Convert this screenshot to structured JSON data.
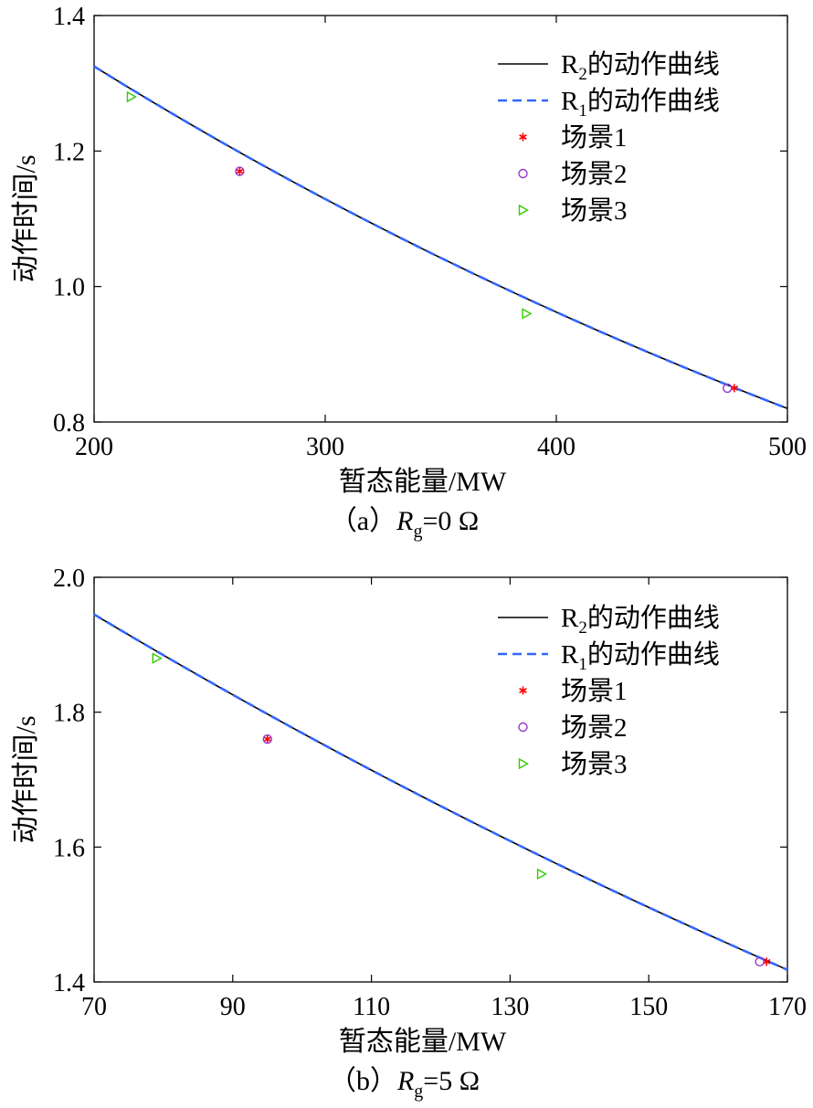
{
  "chart_data": [
    {
      "type": "line",
      "caption": {
        "prefix": "（a）",
        "var": "R",
        "sub": "g",
        "rest": "=0 Ω"
      },
      "xlabel": "暂态能量/MW",
      "ylabel": "动作时间/s",
      "xlim": [
        200,
        500
      ],
      "ylim": [
        0.8,
        1.4
      ],
      "xticks": [
        200,
        300,
        400,
        500
      ],
      "yticks": [
        0.8,
        1.0,
        1.2,
        1.4
      ],
      "ytick_decimals": 1,
      "legend_position": "top-right",
      "curve": {
        "x_start": 200,
        "x_end": 500,
        "y_start": 1.325,
        "y_end": 0.82
      },
      "series": [
        {
          "name": "R",
          "name_sub": "2",
          "name_rest": "的动作曲线",
          "kind": "curve",
          "style": "solid",
          "color": "#000000"
        },
        {
          "name": "R",
          "name_sub": "1",
          "name_rest": "的动作曲线",
          "kind": "curve",
          "style": "dashed",
          "color": "#3366ff"
        },
        {
          "name": "场景1",
          "kind": "points",
          "marker": "asterisk",
          "color": "#ff0000",
          "points": [
            [
              263,
              1.17
            ],
            [
              477,
              0.85
            ]
          ]
        },
        {
          "name": "场景2",
          "kind": "points",
          "marker": "circle",
          "color": "#9933cc",
          "points": [
            [
              263,
              1.17
            ],
            [
              474,
              0.85
            ]
          ]
        },
        {
          "name": "场景3",
          "kind": "points",
          "marker": "triangle-right",
          "color": "#33cc00",
          "points": [
            [
              216,
              1.28
            ],
            [
              387,
              0.96
            ]
          ]
        }
      ]
    },
    {
      "type": "line",
      "caption": {
        "prefix": "（b）",
        "var": "R",
        "sub": "g",
        "rest": "=5 Ω"
      },
      "xlabel": "暂态能量/MW",
      "ylabel": "动作时间/s",
      "xlim": [
        70,
        170
      ],
      "ylim": [
        1.4,
        2.0
      ],
      "xticks": [
        70,
        90,
        110,
        130,
        150,
        170
      ],
      "yticks": [
        1.4,
        1.6,
        1.8,
        2.0
      ],
      "ytick_decimals": 1,
      "legend_position": "top-right",
      "curve": {
        "x_start": 70,
        "x_end": 170,
        "y_start": 1.945,
        "y_end": 1.418
      },
      "series": [
        {
          "name": "R",
          "name_sub": "2",
          "name_rest": "的动作曲线",
          "kind": "curve",
          "style": "solid",
          "color": "#000000"
        },
        {
          "name": "R",
          "name_sub": "1",
          "name_rest": "的动作曲线",
          "kind": "curve",
          "style": "dashed",
          "color": "#3366ff"
        },
        {
          "name": "场景1",
          "kind": "points",
          "marker": "asterisk",
          "color": "#ff0000",
          "points": [
            [
              95,
              1.76
            ],
            [
              167,
              1.43
            ]
          ]
        },
        {
          "name": "场景2",
          "kind": "points",
          "marker": "circle",
          "color": "#9933cc",
          "points": [
            [
              95,
              1.76
            ],
            [
              166,
              1.43
            ]
          ]
        },
        {
          "name": "场景3",
          "kind": "points",
          "marker": "triangle-right",
          "color": "#33cc00",
          "points": [
            [
              79,
              1.88
            ],
            [
              134.5,
              1.56
            ]
          ]
        }
      ]
    }
  ]
}
